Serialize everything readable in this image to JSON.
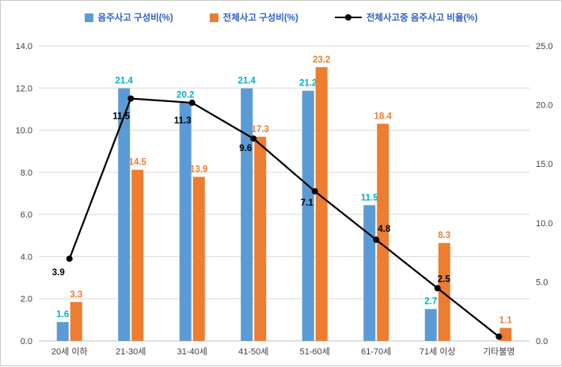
{
  "styles": {
    "background": "#ffffff",
    "frame_border": "#c9c9c9",
    "grid_color": "#d9d9d9",
    "axis_line_color": "#bfbfbf",
    "tick_label_color": "#404040",
    "category_label_color": "#404040",
    "legend_text_color": "#2e5ec4"
  },
  "chart_data": {
    "type": "bar+line combo",
    "title": "",
    "legend_position": "top",
    "grid": true,
    "categories": [
      "20세 이하",
      "21-30세",
      "31-40세",
      "41-50세",
      "51-60세",
      "61-70세",
      "71세 이상",
      "기타불명"
    ],
    "series": [
      {
        "name": "음주사고 구성비(%)",
        "type": "bar",
        "axis": "right",
        "color": "#5b9bd5",
        "label_color": "#00b0c7",
        "values": [
          1.6,
          21.4,
          20.2,
          21.4,
          21.2,
          11.5,
          2.7,
          0
        ],
        "data_labels": [
          "1.6",
          "21.4",
          "20.2",
          "21.4",
          "21.2",
          "11.5",
          "2.7",
          null
        ]
      },
      {
        "name": "전체사고 구성비(%)",
        "type": "bar",
        "axis": "right",
        "color": "#ed7d31",
        "label_color": "#ed7d31",
        "values": [
          3.3,
          14.5,
          13.9,
          17.3,
          23.2,
          18.4,
          8.3,
          1.1
        ],
        "data_labels": [
          "3.3",
          "14.5",
          "13.9",
          "17.3",
          "23.2",
          "18.4",
          "8.3",
          "1.1"
        ]
      },
      {
        "name": "전체사고중 음주사고 비율(%)",
        "type": "line",
        "axis": "left",
        "color": "#000000",
        "label_color": "#000000",
        "values": [
          3.9,
          11.5,
          11.3,
          9.6,
          7.1,
          4.8,
          2.5,
          0.2
        ],
        "data_labels": [
          "3.9",
          "11.5",
          "11.3",
          "9.6",
          "7.1",
          "4.8",
          "2.5",
          null
        ]
      }
    ],
    "left_axis": {
      "min": 0,
      "max": 14,
      "step": 2,
      "ticks": [
        "0.0",
        "2.0",
        "4.0",
        "6.0",
        "8.0",
        "10.0",
        "12.0",
        "14.0"
      ]
    },
    "right_axis": {
      "min": 0,
      "max": 25,
      "step": 5,
      "ticks": [
        "0.0",
        "5.0",
        "10.0",
        "15.0",
        "20.0",
        "25.0"
      ]
    }
  }
}
